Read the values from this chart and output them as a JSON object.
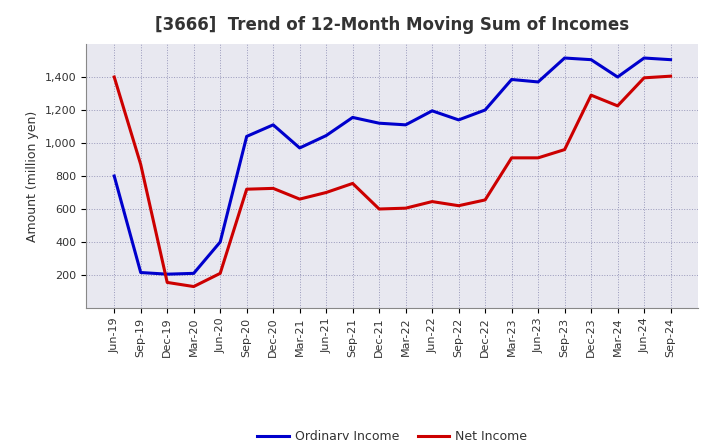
{
  "title": "[3666]  Trend of 12-Month Moving Sum of Incomes",
  "ylabel": "Amount (million yen)",
  "x_labels": [
    "Jun-19",
    "Sep-19",
    "Dec-19",
    "Mar-20",
    "Jun-20",
    "Sep-20",
    "Dec-20",
    "Mar-21",
    "Jun-21",
    "Sep-21",
    "Dec-21",
    "Mar-22",
    "Jun-22",
    "Sep-22",
    "Dec-22",
    "Mar-23",
    "Jun-23",
    "Sep-23",
    "Dec-23",
    "Mar-24",
    "Jun-24",
    "Sep-24"
  ],
  "ordinary_income": [
    800,
    215,
    205,
    210,
    400,
    1040,
    1110,
    970,
    1045,
    1155,
    1120,
    1110,
    1195,
    1140,
    1200,
    1385,
    1370,
    1515,
    1505,
    1400,
    1515,
    1505
  ],
  "net_income": [
    1400,
    870,
    155,
    130,
    210,
    720,
    725,
    660,
    700,
    755,
    600,
    605,
    645,
    620,
    655,
    910,
    910,
    960,
    1290,
    1225,
    1395,
    1405
  ],
  "ordinary_color": "#0000cc",
  "net_color": "#cc0000",
  "ylim_min": 0,
  "ylim_max": 1600,
  "yticks": [
    200,
    400,
    600,
    800,
    1000,
    1200,
    1400
  ],
  "chart_bg_color": "#e8e8f0",
  "figure_bg_color": "#ffffff",
  "grid_color": "#9999bb",
  "title_color": "#333333",
  "legend_ordinary": "Ordinary Income",
  "legend_net": "Net Income",
  "line_width": 2.2,
  "title_fontsize": 12,
  "ylabel_fontsize": 9,
  "tick_fontsize": 8
}
